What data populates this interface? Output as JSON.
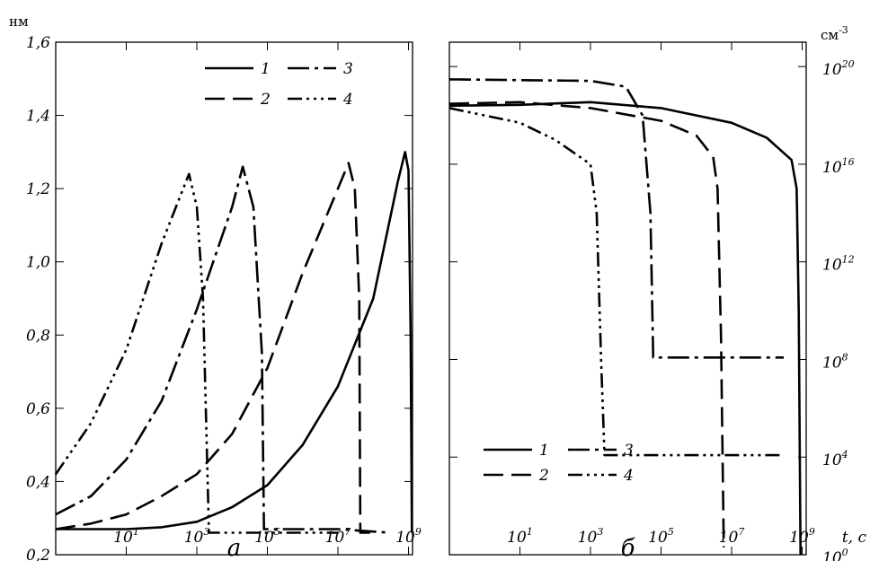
{
  "chart_data": [
    {
      "type": "line",
      "panel_label": "а",
      "ylabel": "нм",
      "xscale": "log",
      "yscale": "linear",
      "xlim": [
        0.1,
        1300000000.0
      ],
      "ylim": [
        0.2,
        1.6
      ],
      "xticks": [
        {
          "value": 10,
          "base": "10",
          "exp": "1"
        },
        {
          "value": 1000,
          "base": "10",
          "exp": "3"
        },
        {
          "value": 100000,
          "base": "10",
          "exp": "5"
        },
        {
          "value": 10000000,
          "base": "10",
          "exp": "7"
        },
        {
          "value": 1000000000,
          "base": "10",
          "exp": "9"
        }
      ],
      "yticks": [
        {
          "value": 0.2,
          "label": "0,2"
        },
        {
          "value": 0.4,
          "label": "0,4"
        },
        {
          "value": 0.6,
          "label": "0,6"
        },
        {
          "value": 0.8,
          "label": "0,8"
        },
        {
          "value": 1.0,
          "label": "1,0"
        },
        {
          "value": 1.2,
          "label": "1,2"
        },
        {
          "value": 1.4,
          "label": "1,4"
        },
        {
          "value": 1.6,
          "label": "1,6"
        }
      ],
      "legend": {
        "position": "top-right"
      },
      "series": [
        {
          "name": "1",
          "dash": "",
          "points": [
            [
              0.1,
              0.27
            ],
            [
              10,
              0.27
            ],
            [
              100,
              0.275
            ],
            [
              1000,
              0.29
            ],
            [
              10000,
              0.33
            ],
            [
              100000,
              0.39
            ],
            [
              1000000,
              0.5
            ],
            [
              10000000,
              0.66
            ],
            [
              100000000,
              0.9
            ],
            [
              500000000,
              1.22
            ],
            [
              800000000,
              1.3
            ],
            [
              1000000000,
              1.25
            ],
            [
              1150000000,
              0.8
            ],
            [
              1250000000,
              0.26
            ]
          ]
        },
        {
          "name": "2",
          "dash": "22 9",
          "points": [
            [
              0.1,
              0.27
            ],
            [
              1,
              0.285
            ],
            [
              10,
              0.31
            ],
            [
              100,
              0.36
            ],
            [
              1000,
              0.42
            ],
            [
              10000,
              0.53
            ],
            [
              100000,
              0.71
            ],
            [
              1000000,
              0.97
            ],
            [
              10000000,
              1.2
            ],
            [
              20000000,
              1.27
            ],
            [
              30000000,
              1.2
            ],
            [
              40000000,
              0.9
            ],
            [
              43000000,
              0.26
            ],
            [
              100000000,
              0.26
            ]
          ]
        },
        {
          "name": "3",
          "dash": "24 6 4 6",
          "points": [
            [
              0.1,
              0.31
            ],
            [
              1,
              0.36
            ],
            [
              10,
              0.46
            ],
            [
              100,
              0.62
            ],
            [
              1000,
              0.87
            ],
            [
              10000,
              1.15
            ],
            [
              20000,
              1.26
            ],
            [
              40000,
              1.15
            ],
            [
              70000,
              0.75
            ],
            [
              80000,
              0.27
            ],
            [
              10000000,
              0.27
            ],
            [
              300000000,
              0.26
            ]
          ]
        },
        {
          "name": "4",
          "dash": "16 5 3 5 3 5 3 5",
          "points": [
            [
              0.1,
              0.42
            ],
            [
              1,
              0.56
            ],
            [
              10,
              0.76
            ],
            [
              100,
              1.05
            ],
            [
              600,
              1.24
            ],
            [
              1000,
              1.15
            ],
            [
              1500,
              0.9
            ],
            [
              2200,
              0.26
            ],
            [
              1000000,
              0.26
            ],
            [
              10000000,
              0.26
            ]
          ]
        }
      ]
    },
    {
      "type": "line",
      "panel_label": "б",
      "ylabel": "см-3",
      "xlabel": "t, с",
      "xscale": "log",
      "yscale": "log",
      "xlim": [
        0.1,
        1300000000.0
      ],
      "ylim": [
        1,
        1e+21
      ],
      "xticks": [
        {
          "value": 10,
          "base": "10",
          "exp": "1"
        },
        {
          "value": 1000,
          "base": "10",
          "exp": "3"
        },
        {
          "value": 100000,
          "base": "10",
          "exp": "5"
        },
        {
          "value": 10000000,
          "base": "10",
          "exp": "7"
        },
        {
          "value": 1000000000,
          "base": "10",
          "exp": "9"
        }
      ],
      "yticks": [
        {
          "value": 1,
          "base": "10",
          "exp": "0"
        },
        {
          "value": 10000,
          "base": "10",
          "exp": "4"
        },
        {
          "value": 100000000,
          "base": "10",
          "exp": "8"
        },
        {
          "value": 1000000000000.0,
          "base": "10",
          "exp": "12"
        },
        {
          "value": 1e+16,
          "base": "10",
          "exp": "16"
        },
        {
          "value": 1e+20,
          "base": "10",
          "exp": "20"
        }
      ],
      "legend": {
        "position": "bottom-left"
      },
      "series": [
        {
          "name": "1",
          "dash": "",
          "points": [
            [
              0.1,
              2.5e+18
            ],
            [
              10,
              2.7e+18
            ],
            [
              1000,
              3.5e+18
            ],
            [
              100000,
              2e+18
            ],
            [
              10000000,
              5e+17
            ],
            [
              100000000,
              1.2e+17
            ],
            [
              500000000,
              1.5e+16
            ],
            [
              700000000,
              1000000000000000.0
            ],
            [
              800000000,
              10000000000.0
            ],
            [
              900000000,
              1
            ]
          ]
        },
        {
          "name": "2",
          "dash": "22 9",
          "points": [
            [
              0.1,
              3e+18
            ],
            [
              10,
              3.5e+18
            ],
            [
              1000,
              2e+18
            ],
            [
              100000,
              6e+17
            ],
            [
              1000000,
              1.5e+17
            ],
            [
              3000000,
              2e+16
            ],
            [
              4000000,
              1000000000000000.0
            ],
            [
              5000000,
              1000000000.0
            ],
            [
              6000000,
              2
            ]
          ]
        },
        {
          "name": "3",
          "dash": "24 6 4 6",
          "points": [
            [
              0.1,
              3e+19
            ],
            [
              1000,
              2.6e+19
            ],
            [
              10000,
              1.5e+19
            ],
            [
              30000,
              1e+18
            ],
            [
              50000,
              100000000000000.0
            ],
            [
              60000,
              120000000.0
            ],
            [
              300000000,
              120000000.0
            ]
          ]
        },
        {
          "name": "4",
          "dash": "16 5 3 5 3 5 3 5",
          "points": [
            [
              0.1,
              2e+18
            ],
            [
              10,
              5e+17
            ],
            [
              100,
              1e+17
            ],
            [
              1000,
              1e+16
            ],
            [
              1500,
              100000000000000.0
            ],
            [
              2000,
              100000000.0
            ],
            [
              2500,
              12000.0
            ],
            [
              300000000,
              12000.0
            ]
          ]
        }
      ]
    }
  ]
}
